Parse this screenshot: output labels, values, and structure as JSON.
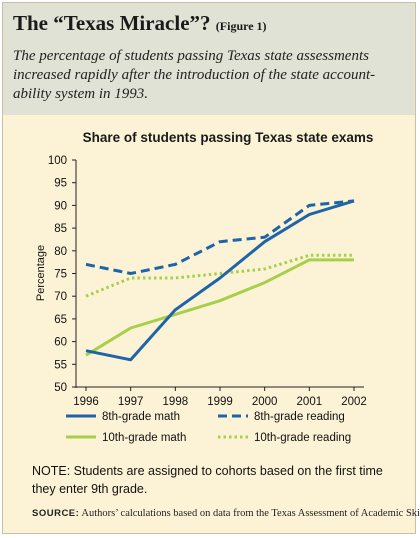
{
  "header": {
    "title": "The “Texas Miracle”?",
    "figure_label": "(Figure 1)",
    "subtitle": "The percentage of students passing Texas state assessments increased rapidly after the introduction of the state account-ability system in 1993."
  },
  "chart_data": {
    "type": "line",
    "title": "Share of students passing Texas state exams",
    "xlabel": "",
    "ylabel": "Percentage",
    "categories": [
      "1996",
      "1997",
      "1998",
      "1999",
      "2000",
      "2001",
      "2002"
    ],
    "yticks": [
      "50",
      "55",
      "60",
      "65",
      "70",
      "75",
      "80",
      "85",
      "90",
      "95",
      "100"
    ],
    "ylim": [
      50,
      100
    ],
    "grid": false,
    "legend_position": "bottom",
    "series": [
      {
        "name": "8th-grade math",
        "values": [
          58,
          56,
          67,
          74,
          82,
          88,
          91
        ],
        "color": "#1f63a8",
        "style": "solid"
      },
      {
        "name": "8th-grade reading",
        "values": [
          77,
          75,
          77,
          82,
          83,
          90,
          91
        ],
        "color": "#1f63a8",
        "style": "dashed"
      },
      {
        "name": "10th-grade math",
        "values": [
          57,
          63,
          66,
          69,
          73,
          78,
          78
        ],
        "color": "#a6cf4a",
        "style": "solid"
      },
      {
        "name": "10th-grade reading",
        "values": [
          70,
          74,
          74,
          75,
          76,
          79,
          79
        ],
        "color": "#a6cf4a",
        "style": "dotted"
      }
    ]
  },
  "footer": {
    "note": "NOTE: Students are assigned to cohorts based on the first time they enter 9th grade.",
    "source_label": "SOURCE:",
    "source_text": "Authors’ calculations based on data from the Texas Assessment of Academic Skills"
  }
}
